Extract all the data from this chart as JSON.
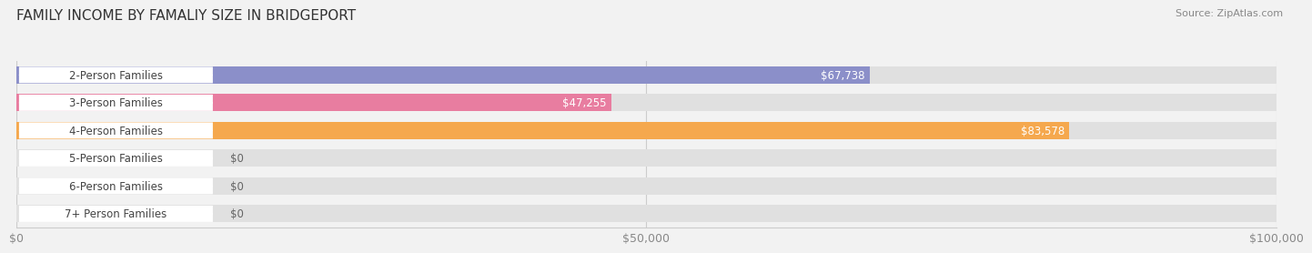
{
  "title": "FAMILY INCOME BY FAMALIY SIZE IN BRIDGEPORT",
  "source": "Source: ZipAtlas.com",
  "categories": [
    "2-Person Families",
    "3-Person Families",
    "4-Person Families",
    "5-Person Families",
    "6-Person Families",
    "7+ Person Families"
  ],
  "values": [
    67738,
    47255,
    83578,
    0,
    0,
    0
  ],
  "bar_colors": [
    "#8b8fc9",
    "#e87da0",
    "#f5a84e",
    "#e89999",
    "#99aad4",
    "#b89dcc"
  ],
  "value_labels": [
    "$67,738",
    "$47,255",
    "$83,578",
    "$0",
    "$0",
    "$0"
  ],
  "xlim": [
    0,
    100000
  ],
  "xticks": [
    0,
    50000,
    100000
  ],
  "xtick_labels": [
    "$0",
    "$50,000",
    "$100,000"
  ],
  "bg_color": "#f2f2f2",
  "title_fontsize": 11,
  "label_fontsize": 8.5,
  "value_fontsize": 8.5
}
